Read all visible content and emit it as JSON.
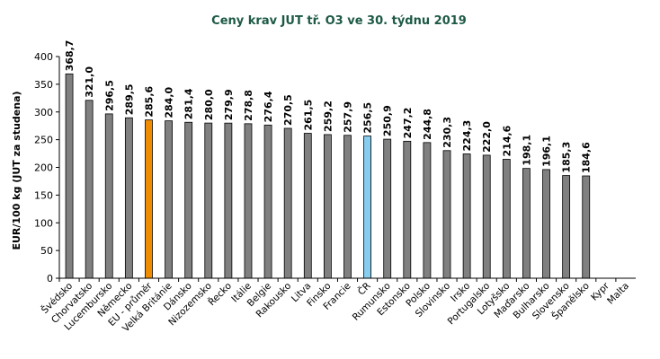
{
  "chart_data": {
    "type": "bar",
    "title": "Ceny krav  JUT  tř. O3  ve 30. týdnu 2019",
    "xlabel": "",
    "ylabel": "EUR/100 kg (JUT za studena)",
    "ylim": [
      0,
      400
    ],
    "yticks": [
      0,
      50,
      100,
      150,
      200,
      250,
      300,
      350,
      400
    ],
    "grid": false,
    "categories": [
      "Švédsko",
      "Chorvatsko",
      "Lucembursko",
      "Německo",
      "EU - průměr",
      "Velká Británie",
      "Dánsko",
      "Nizozemsko",
      "Řecko",
      "Itálie",
      "Belgie",
      "Rakousko",
      "Litva",
      "Finsko",
      "Francie",
      "ČR",
      "Rumunsko",
      "Estonsko",
      "Polsko",
      "Slovinsko",
      "Irsko",
      "Portugalsko",
      "Lotyšsko",
      "Maďarsko",
      "Bulharsko",
      "Slovensko",
      "Španělsko",
      "Kypr",
      "Malta"
    ],
    "values": [
      368.7,
      321.0,
      296.5,
      289.5,
      285.6,
      284.0,
      281.4,
      280.0,
      279.9,
      278.8,
      276.4,
      270.5,
      261.5,
      259.2,
      257.9,
      256.5,
      250.9,
      247.2,
      244.8,
      230.3,
      224.3,
      222.0,
      214.6,
      198.1,
      196.1,
      185.3,
      184.6,
      null,
      null
    ],
    "data_labels": [
      "368,7",
      "321,0",
      "296,5",
      "289,5",
      "285,6",
      "284,0",
      "281,4",
      "280,0",
      "279,9",
      "278,8",
      "276,4",
      "270,5",
      "261,5",
      "259,2",
      "257,9",
      "256,5",
      "250,9",
      "247,2",
      "244,8",
      "230,3",
      "224,3",
      "222,0",
      "214,6",
      "198,1",
      "196,1",
      "185,3",
      "184,6",
      "",
      ""
    ],
    "colors": {
      "default": "#808080",
      "eu_average": "#f08c00",
      "czech_republic": "#87cdf0",
      "bar_border": "#000000",
      "title": "#1d5a45"
    },
    "highlight": {
      "EU - průměr": "eu_average",
      "ČR": "czech_republic"
    }
  }
}
